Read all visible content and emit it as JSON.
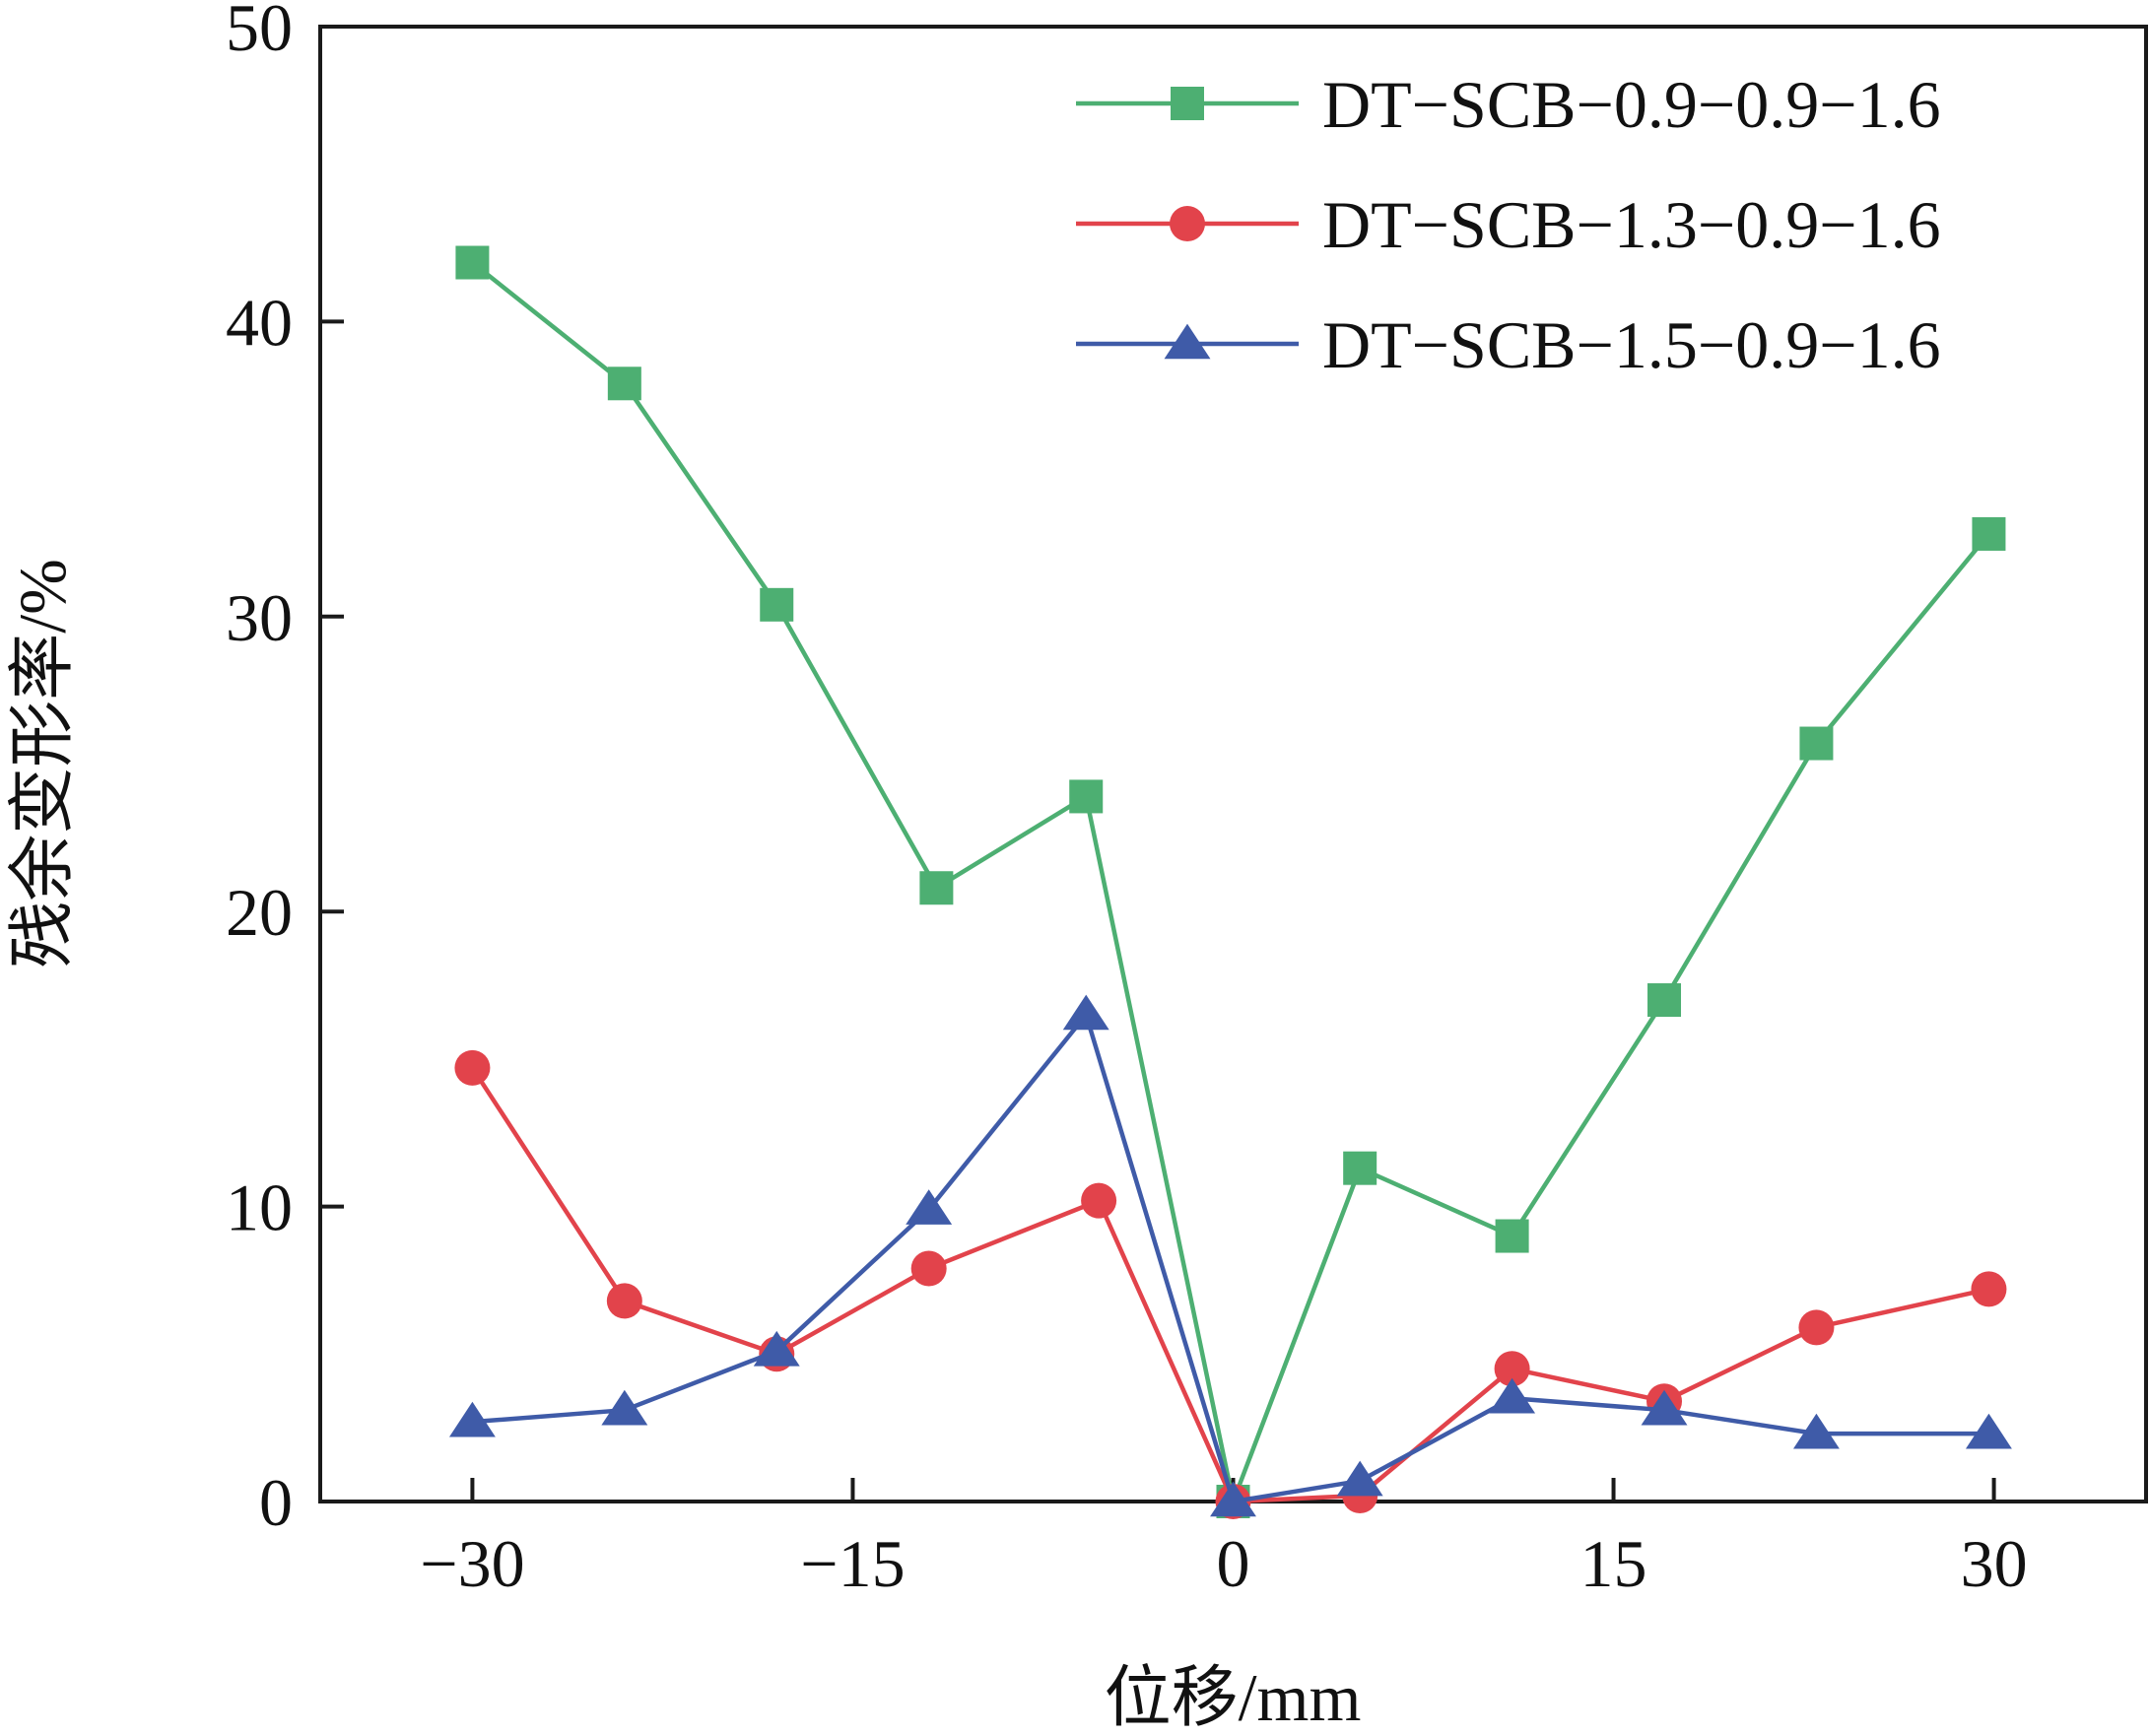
{
  "chart_data": {
    "type": "line",
    "title": "",
    "xlabel": "位移/mm",
    "ylabel": "残余变形率/%",
    "xlim": [
      -36,
      36
    ],
    "ylim": [
      0,
      50
    ],
    "xticks": [
      -30,
      -15,
      0,
      15,
      30
    ],
    "xtick_labels": [
      "−30",
      "−15",
      "0",
      "15",
      "30"
    ],
    "yticks": [
      0,
      10,
      20,
      30,
      40,
      50
    ],
    "ytick_labels": [
      "0",
      "10",
      "20",
      "30",
      "40",
      "50"
    ],
    "grid": false,
    "legend_position": "top-right",
    "series": [
      {
        "name": "DT−SCB−0.9−0.9−1.6",
        "color": "#4daf72",
        "marker": "square",
        "points": [
          [
            -30,
            42.0
          ],
          [
            -24,
            37.9
          ],
          [
            -18,
            30.4
          ],
          [
            -11.7,
            20.8
          ],
          [
            -5.8,
            23.9
          ],
          [
            0,
            0
          ],
          [
            5,
            11.3
          ],
          [
            11,
            9.0
          ],
          [
            17,
            17.0
          ],
          [
            23,
            25.7
          ],
          [
            29.8,
            32.8
          ]
        ]
      },
      {
        "name": "DT−SCB−1.3−0.9−1.6",
        "color": "#e2434b",
        "marker": "circle",
        "points": [
          [
            -30,
            14.7
          ],
          [
            -24,
            6.8
          ],
          [
            -18,
            5.0
          ],
          [
            -12,
            7.9
          ],
          [
            -5.3,
            10.2
          ],
          [
            0,
            0
          ],
          [
            5,
            0.2
          ],
          [
            11,
            4.5
          ],
          [
            17,
            3.4
          ],
          [
            23,
            5.9
          ],
          [
            29.8,
            7.2
          ]
        ]
      },
      {
        "name": "DT−SCB−1.5−0.9−1.6",
        "color": "#3f5ba8",
        "marker": "triangle",
        "points": [
          [
            -30,
            2.7
          ],
          [
            -24,
            3.1
          ],
          [
            -18,
            5.1
          ],
          [
            -12,
            9.9
          ],
          [
            -5.8,
            16.5
          ],
          [
            0,
            0
          ],
          [
            5,
            0.7
          ],
          [
            11,
            3.5
          ],
          [
            17,
            3.1
          ],
          [
            23,
            2.3
          ],
          [
            29.8,
            2.3
          ]
        ]
      }
    ]
  }
}
